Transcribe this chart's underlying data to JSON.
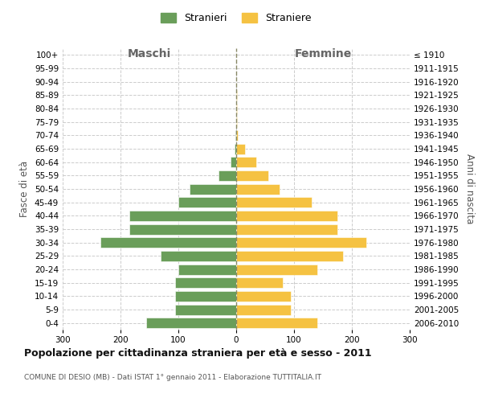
{
  "age_groups": [
    "0-4",
    "5-9",
    "10-14",
    "15-19",
    "20-24",
    "25-29",
    "30-34",
    "35-39",
    "40-44",
    "45-49",
    "50-54",
    "55-59",
    "60-64",
    "65-69",
    "70-74",
    "75-79",
    "80-84",
    "85-89",
    "90-94",
    "95-99",
    "100+"
  ],
  "birth_years": [
    "2006-2010",
    "2001-2005",
    "1996-2000",
    "1991-1995",
    "1986-1990",
    "1981-1985",
    "1976-1980",
    "1971-1975",
    "1966-1970",
    "1961-1965",
    "1956-1960",
    "1951-1955",
    "1946-1950",
    "1941-1945",
    "1936-1940",
    "1931-1935",
    "1926-1930",
    "1921-1925",
    "1916-1920",
    "1911-1915",
    "≤ 1910"
  ],
  "maschi": [
    155,
    105,
    105,
    105,
    100,
    130,
    235,
    185,
    185,
    100,
    80,
    30,
    10,
    3,
    2,
    0,
    0,
    0,
    0,
    0,
    0
  ],
  "femmine": [
    140,
    95,
    95,
    80,
    140,
    185,
    225,
    175,
    175,
    130,
    75,
    55,
    35,
    15,
    3,
    2,
    1,
    1,
    0,
    0,
    0
  ],
  "color_maschi": "#6a9e5a",
  "color_femmine": "#f5c242",
  "title": "Popolazione per cittadinanza straniera per età e sesso - 2011",
  "subtitle": "COMUNE DI DESIO (MB) - Dati ISTAT 1° gennaio 2011 - Elaborazione TUTTITALIA.IT",
  "ylabel_left": "Fasce di età",
  "ylabel_right": "Anni di nascita",
  "xlabel_maschi": "Maschi",
  "xlabel_femmine": "Femmine",
  "legend_maschi": "Stranieri",
  "legend_femmine": "Straniere",
  "xlim": 300,
  "background_color": "#ffffff",
  "grid_color": "#cccccc"
}
